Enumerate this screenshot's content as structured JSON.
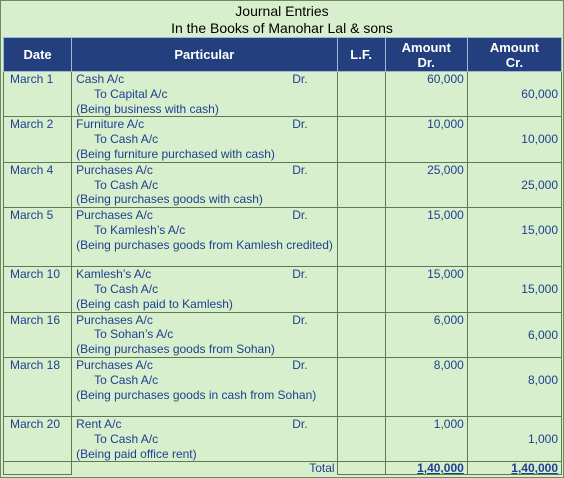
{
  "title_line1": "Journal Entries",
  "title_line2": "In the Books of Manohar Lal & sons",
  "headers": {
    "date": "Date",
    "particular": "Particular",
    "lf": "L.F.",
    "amount_dr_1": "Amount",
    "amount_dr_2": "Dr.",
    "amount_cr_1": "Amount",
    "amount_cr_2": "Cr."
  },
  "entries": [
    {
      "date": "March 1",
      "debit": "Cash A/c",
      "dr": "Dr.",
      "credit": "To Capital A/c",
      "narration": "(Being business with cash)",
      "amount_dr": "60,000",
      "amount_cr": "60,000"
    },
    {
      "date": "March 2",
      "debit": "Furniture A/c",
      "dr": "Dr.",
      "credit": "To Cash A/c",
      "narration": "(Being furniture purchased with cash)",
      "amount_dr": "10,000",
      "amount_cr": "10,000"
    },
    {
      "date": "March 4",
      "debit": "Purchases A/c",
      "dr": "Dr.",
      "credit": "To Cash A/c",
      "narration": "(Being purchases goods with cash)",
      "amount_dr": "25,000",
      "amount_cr": "25,000"
    },
    {
      "date": "March 5",
      "debit": "Purchases A/c",
      "dr": "Dr.",
      "credit": "To Kamlesh’s A/c",
      "narration": "(Being purchases goods from Kamlesh credited)",
      "amount_dr": "15,000",
      "amount_cr": "15,000"
    },
    {
      "date": "March 10",
      "debit": "Kamlesh’s A/c",
      "dr": "Dr.",
      "credit": "To Cash A/c",
      "narration": "(Being cash paid to Kamlesh)",
      "amount_dr": "15,000",
      "amount_cr": "15,000"
    },
    {
      "date": "March 16",
      "debit": "Purchases A/c",
      "dr": "Dr.",
      "credit": "To Sohan’s A/c",
      "narration": "(Being purchases goods from Sohan)",
      "amount_dr": "6,000",
      "amount_cr": "6,000"
    },
    {
      "date": "March 18",
      "debit": "Purchases A/c",
      "dr": "Dr.",
      "credit": "To Cash A/c",
      "narration": "(Being purchases goods in cash from Sohan)",
      "amount_dr": "8,000",
      "amount_cr": "8,000"
    },
    {
      "date": "March 20",
      "debit": "Rent A/c",
      "dr": "Dr.",
      "credit": "To Cash A/c",
      "narration": "(Being paid office rent)",
      "amount_dr": "1,000",
      "amount_cr": "1,000"
    }
  ],
  "total": {
    "label": "Total",
    "amount_dr": "1,40,000",
    "amount_cr": "1,40,000"
  },
  "colors": {
    "header_bg": "#243f7e",
    "sheet_bg": "#d8efcd",
    "text": "#1f3f8f"
  }
}
